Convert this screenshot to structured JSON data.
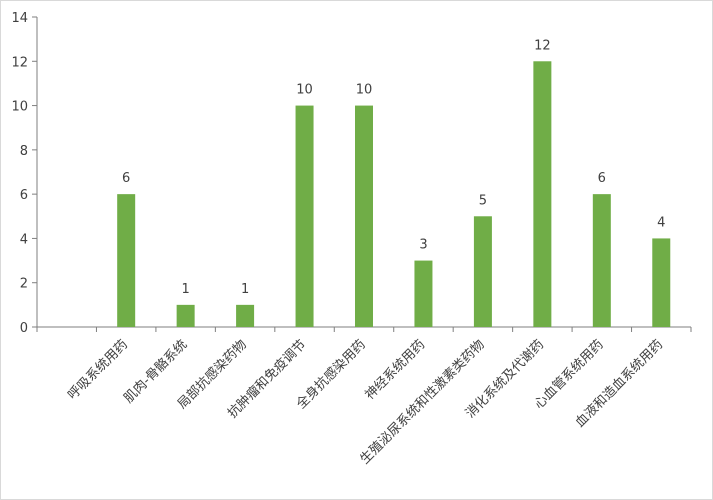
{
  "chart_data": {
    "type": "bar",
    "categories": [
      "呼吸系统用药",
      "肌肉-骨骼系统",
      "局部抗感染药物",
      "抗肿瘤和免疫调节",
      "全身抗感染用药",
      "神经系统用药",
      "生殖泌尿系统和性激素类药物",
      "消化系统及代谢药",
      "心血管系统用药",
      "血液和造血系统用药"
    ],
    "values": [
      6,
      1,
      1,
      10,
      10,
      3,
      5,
      12,
      6,
      4
    ],
    "ylim": [
      0,
      14
    ],
    "yticks": [
      "0",
      "2",
      "4",
      "6",
      "8",
      "10",
      "12",
      "14"
    ],
    "grid": false,
    "legend": "none",
    "bar_color": "#70ad47"
  }
}
